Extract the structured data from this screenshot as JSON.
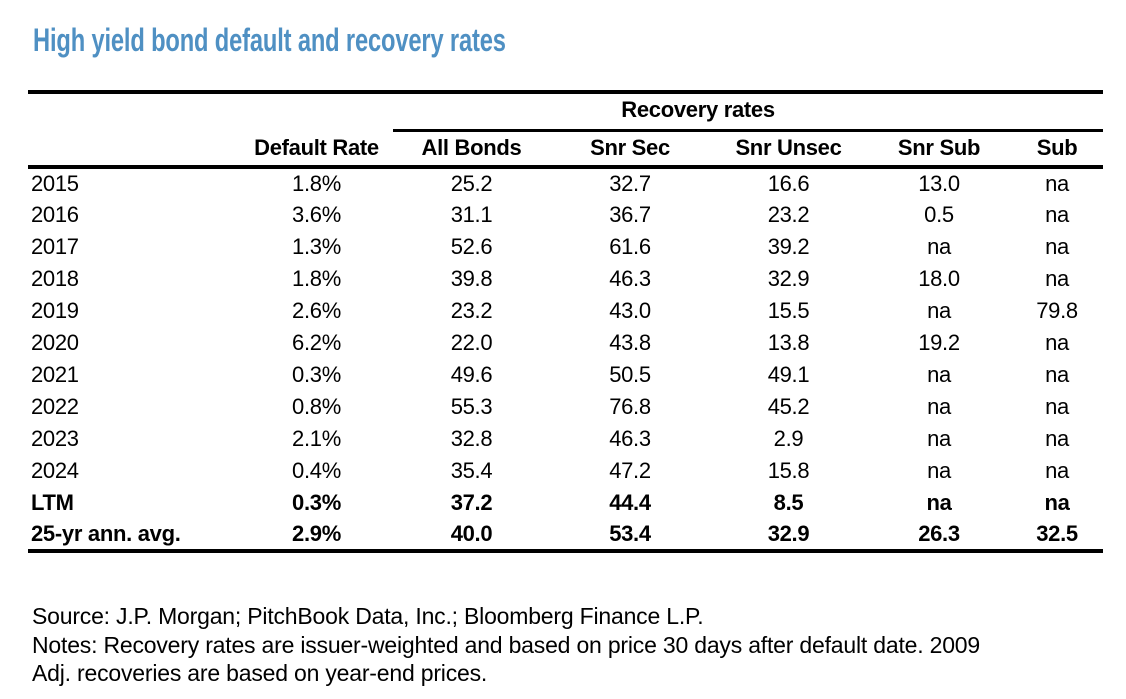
{
  "page_title": "High yield bond default and recovery rates",
  "colors": {
    "title_blue": "#4f90c3",
    "text": "#000000",
    "rule": "#000000"
  },
  "chart_data": {
    "type": "table",
    "title": "High yield bond default and recovery rates",
    "column_group_header": "Recovery rates",
    "column_group_span": [
      "All Bonds",
      "Snr Sec",
      "Snr Unsec",
      "Snr Sub",
      "Sub"
    ],
    "columns": [
      "",
      "Default Rate",
      "All Bonds",
      "Snr Sec",
      "Snr Unsec",
      "Snr Sub",
      "Sub"
    ],
    "rows": [
      {
        "bold": false,
        "cells": [
          "2015",
          "1.8%",
          "25.2",
          "32.7",
          "16.6",
          "13.0",
          "na"
        ]
      },
      {
        "bold": false,
        "cells": [
          "2016",
          "3.6%",
          "31.1",
          "36.7",
          "23.2",
          "0.5",
          "na"
        ]
      },
      {
        "bold": false,
        "cells": [
          "2017",
          "1.3%",
          "52.6",
          "61.6",
          "39.2",
          "na",
          "na"
        ]
      },
      {
        "bold": false,
        "cells": [
          "2018",
          "1.8%",
          "39.8",
          "46.3",
          "32.9",
          "18.0",
          "na"
        ]
      },
      {
        "bold": false,
        "cells": [
          "2019",
          "2.6%",
          "23.2",
          "43.0",
          "15.5",
          "na",
          "79.8"
        ]
      },
      {
        "bold": false,
        "cells": [
          "2020",
          "6.2%",
          "22.0",
          "43.8",
          "13.8",
          "19.2",
          "na"
        ]
      },
      {
        "bold": false,
        "cells": [
          "2021",
          "0.3%",
          "49.6",
          "50.5",
          "49.1",
          "na",
          "na"
        ]
      },
      {
        "bold": false,
        "cells": [
          "2022",
          "0.8%",
          "55.3",
          "76.8",
          "45.2",
          "na",
          "na"
        ]
      },
      {
        "bold": false,
        "cells": [
          "2023",
          "2.1%",
          "32.8",
          "46.3",
          "2.9",
          "na",
          "na"
        ]
      },
      {
        "bold": false,
        "cells": [
          "2024",
          "0.4%",
          "35.4",
          "47.2",
          "15.8",
          "na",
          "na"
        ]
      },
      {
        "bold": true,
        "cells": [
          "LTM",
          "0.3%",
          "37.2",
          "44.4",
          "8.5",
          "na",
          "na"
        ]
      },
      {
        "bold": true,
        "cells": [
          "25-yr ann. avg.",
          "2.9%",
          "40.0",
          "53.4",
          "32.9",
          "26.3",
          "32.5"
        ]
      }
    ]
  },
  "footer": {
    "source_line": "Source: J.P. Morgan; PitchBook Data, Inc.; Bloomberg Finance L.P.",
    "notes_line_1": "Notes: Recovery rates are issuer-weighted and based on price 30 days after default date. 2009",
    "notes_line_2": "Adj. recoveries are based on year-end prices."
  }
}
